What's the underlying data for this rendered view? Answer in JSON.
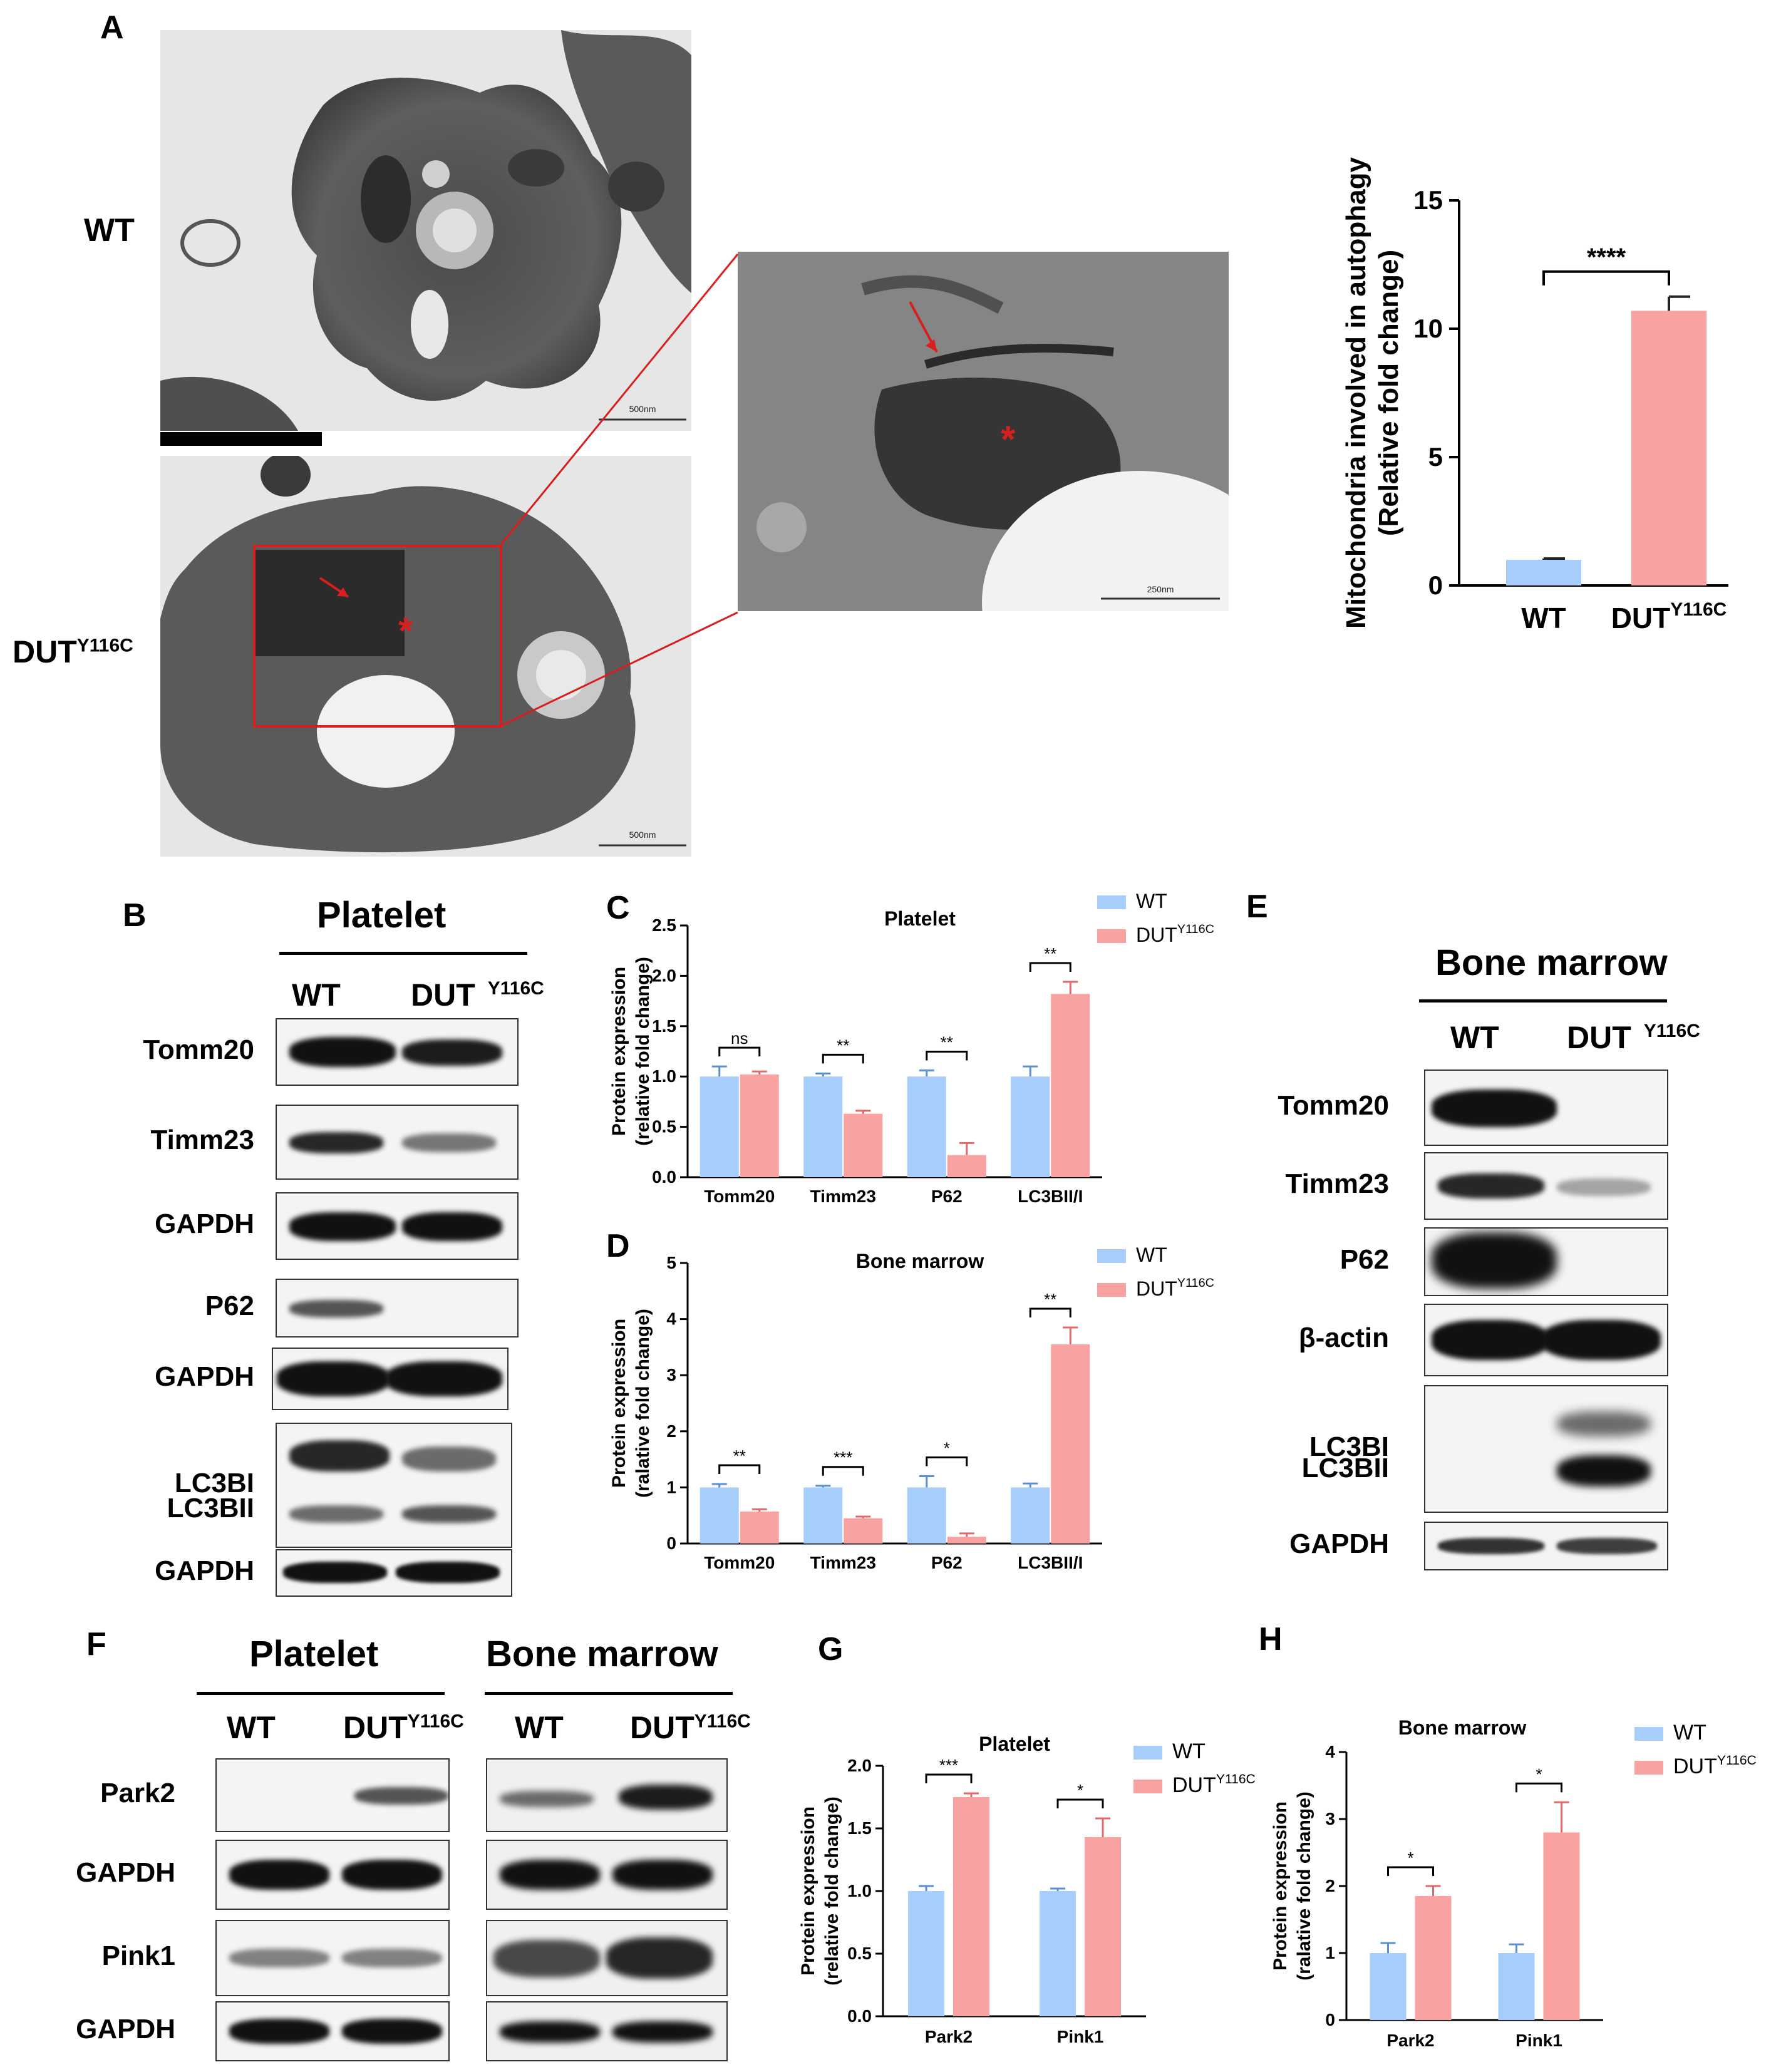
{
  "panel_labels": {
    "A": "A",
    "B": "B",
    "C": "C",
    "D": "D",
    "E": "E",
    "F": "F",
    "G": "G",
    "H": "H"
  },
  "colors": {
    "wt": "#a7cdfa",
    "mut": "#f9a2a2",
    "red": "#d91e1e"
  },
  "panelA": {
    "row_wt": "WT",
    "row_mut": "DUT",
    "row_mut_sup": "Y116C",
    "scale_wt": "500nm",
    "scale_mut": "500nm",
    "scale_zoom": "250nm",
    "asterisk": "*"
  },
  "panelB": {
    "title": "Platelet",
    "col_wt": "WT",
    "col_mut": "DUT",
    "col_mut_sup": "Y116C",
    "rows": [
      "Tomm20",
      "Timm23",
      "GAPDH",
      "P62",
      "GAPDH",
      "LC3BI",
      "LC3BII",
      "GAPDH"
    ]
  },
  "panelE": {
    "title": "Bone marrow",
    "col_wt": "WT",
    "col_mut": "DUT",
    "col_mut_sup": "Y116C",
    "rows": [
      "Tomm20",
      "Timm23",
      "P62",
      "β-actin",
      "LC3BI",
      "LC3BII",
      "GAPDH"
    ]
  },
  "panelF": {
    "title_left": "Platelet",
    "title_right": "Bone marrow",
    "col_wt": "WT",
    "col_mut": "DUT",
    "col_mut_sup": "Y116C",
    "rows": [
      "Park2",
      "GAPDH",
      "Pink1",
      "GAPDH"
    ]
  },
  "chart_data": [
    {
      "id": "A-right",
      "type": "bar",
      "title": "",
      "ylabel": "Mitochondria involved in autophagy",
      "ylabel2": "(Relative fold change)",
      "categories": [
        "WT",
        "DUT"
      ],
      "category_sup": [
        "",
        "Y116C"
      ],
      "ylim": [
        0,
        15
      ],
      "yticks": [
        0,
        5,
        10,
        15
      ],
      "series": [
        {
          "values": [
            1.0,
            10.7
          ],
          "errors": [
            0.05,
            0.55
          ]
        }
      ],
      "significance": [
        {
          "label": "****",
          "from": 0,
          "to": 1
        }
      ]
    },
    {
      "id": "C",
      "type": "bar",
      "title": "Platelet",
      "ylabel": "Protein expression",
      "ylabel2": "(relative fold change)",
      "categories": [
        "Tomm20",
        "Timm23",
        "P62",
        "LC3BII/I"
      ],
      "ylim": [
        0,
        2.5
      ],
      "yticks": [
        0.0,
        0.5,
        1.0,
        1.5,
        2.0,
        2.5
      ],
      "legend": [
        {
          "name": "WT"
        },
        {
          "name": "DUT",
          "sup": "Y116C"
        }
      ],
      "series": [
        {
          "name": "WT",
          "values": [
            1.0,
            1.0,
            1.0,
            1.0
          ],
          "errors": [
            0.1,
            0.03,
            0.06,
            0.1
          ]
        },
        {
          "name": "DUT Y116C",
          "values": [
            1.02,
            0.63,
            0.22,
            1.82
          ],
          "errors": [
            0.03,
            0.03,
            0.12,
            0.12
          ]
        }
      ],
      "significance": [
        "ns",
        "**",
        "**",
        "**"
      ]
    },
    {
      "id": "D",
      "type": "bar",
      "title": "Bone marrow",
      "ylabel": "Protein expression",
      "ylabel2": "(ralative fold change)",
      "categories": [
        "Tomm20",
        "Timm23",
        "P62",
        "LC3BII/I"
      ],
      "ylim": [
        0,
        5
      ],
      "yticks": [
        0,
        1,
        2,
        3,
        4,
        5
      ],
      "legend": [
        {
          "name": "WT"
        },
        {
          "name": "DUT",
          "sup": "Y116C"
        }
      ],
      "series": [
        {
          "name": "WT",
          "values": [
            1.0,
            1.0,
            1.0,
            1.0
          ],
          "errors": [
            0.06,
            0.03,
            0.2,
            0.07
          ]
        },
        {
          "name": "DUT Y116C",
          "values": [
            0.57,
            0.45,
            0.12,
            3.55
          ],
          "errors": [
            0.04,
            0.03,
            0.06,
            0.3
          ]
        }
      ],
      "significance": [
        "**",
        "***",
        "*",
        "**"
      ]
    },
    {
      "id": "G",
      "type": "bar",
      "title": "Platelet",
      "ylabel": "Protein expression",
      "ylabel2": "(relative fold change)",
      "categories": [
        "Park2",
        "Pink1"
      ],
      "ylim": [
        0,
        2.0
      ],
      "yticks": [
        0.0,
        0.5,
        1.0,
        1.5,
        2.0
      ],
      "legend": [
        {
          "name": "WT"
        },
        {
          "name": "DUT",
          "sup": "Y116C"
        }
      ],
      "series": [
        {
          "name": "WT",
          "values": [
            1.0,
            1.0
          ],
          "errors": [
            0.04,
            0.02
          ]
        },
        {
          "name": "DUT Y116C",
          "values": [
            1.75,
            1.43
          ],
          "errors": [
            0.03,
            0.15
          ]
        }
      ],
      "significance": [
        "***",
        "*"
      ]
    },
    {
      "id": "H",
      "type": "bar",
      "title": "Bone marrow",
      "ylabel": "Protein expression",
      "ylabel2": "(ralative fold change)",
      "categories": [
        "Park2",
        "Pink1"
      ],
      "ylim": [
        0,
        4
      ],
      "yticks": [
        0,
        1,
        2,
        3,
        4
      ],
      "legend": [
        {
          "name": "WT"
        },
        {
          "name": "DUT",
          "sup": "Y116C"
        }
      ],
      "series": [
        {
          "name": "WT",
          "values": [
            1.0,
            1.0
          ],
          "errors": [
            0.15,
            0.13
          ]
        },
        {
          "name": "DUT Y116C",
          "values": [
            1.85,
            2.8
          ],
          "errors": [
            0.15,
            0.45
          ]
        }
      ],
      "significance": [
        "*",
        "*"
      ]
    }
  ]
}
